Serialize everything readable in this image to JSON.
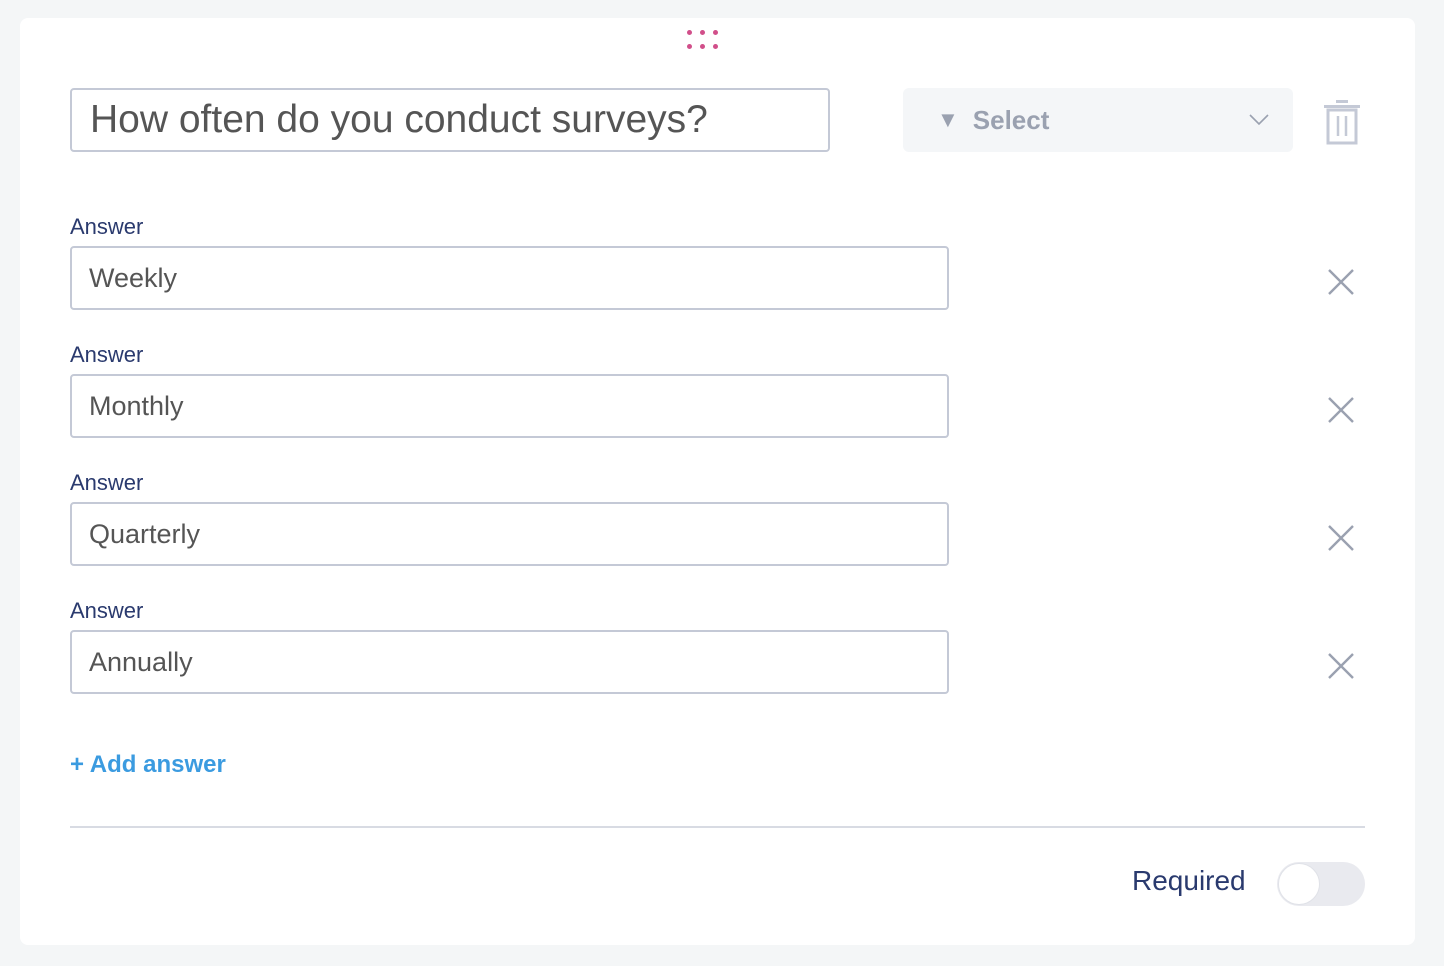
{
  "question": {
    "value": "How often do you conduct surveys?"
  },
  "type_select": {
    "label": "Select",
    "icon": "filter-triangle-icon"
  },
  "answers": [
    {
      "label": "Answer",
      "value": "Weekly"
    },
    {
      "label": "Answer",
      "value": "Monthly"
    },
    {
      "label": "Answer",
      "value": "Quarterly"
    },
    {
      "label": "Answer",
      "value": "Annually"
    }
  ],
  "add_answer_label": "+ Add answer",
  "required": {
    "label": "Required",
    "on": false
  },
  "colors": {
    "accent": "#3b9be0",
    "label": "#2a3a6e",
    "drag": "#d14f8a"
  }
}
